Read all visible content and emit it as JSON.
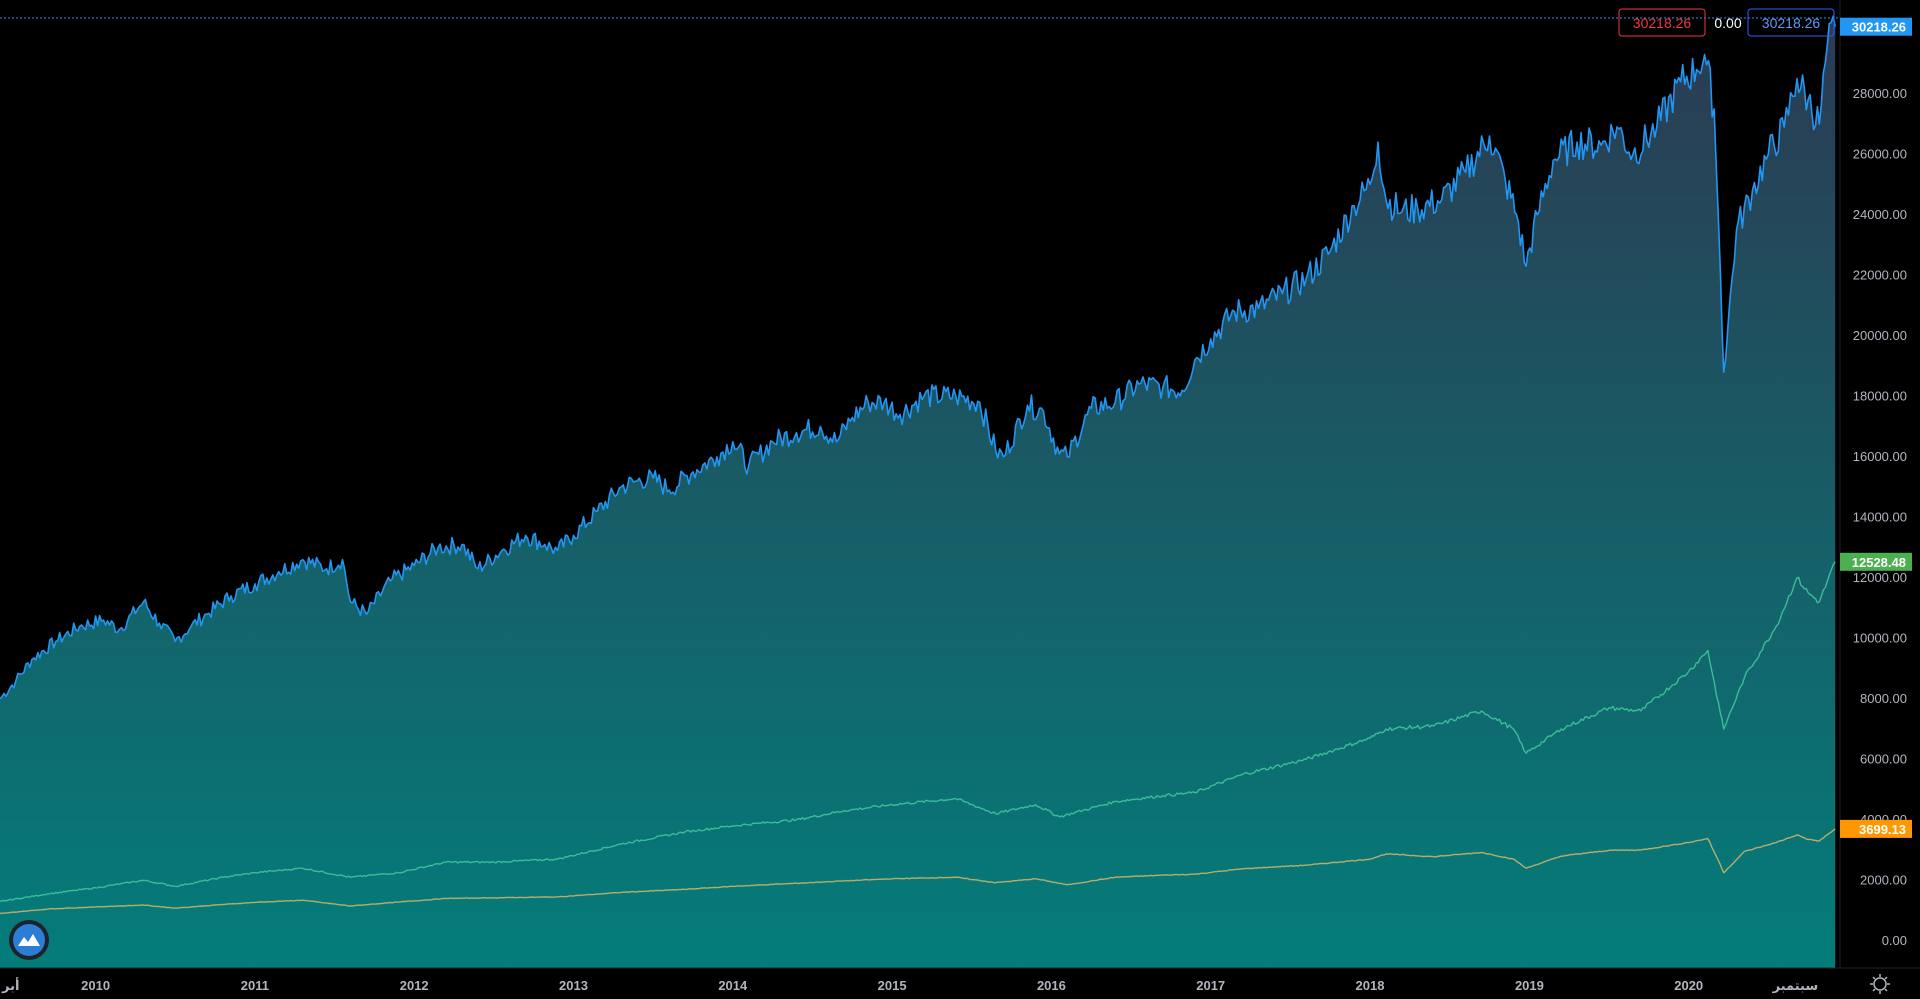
{
  "chart_data": {
    "type": "area",
    "title": "",
    "xlabel": "",
    "ylabel": "",
    "ylim": [
      -900,
      31100
    ],
    "xlim": [
      2009.4,
      2020.95
    ],
    "grid": false,
    "x_ticks": [
      {
        "x": 2009.4,
        "label": "أبر"
      },
      {
        "x": 2010.0,
        "label": "2010"
      },
      {
        "x": 2011.0,
        "label": "2011"
      },
      {
        "x": 2012.0,
        "label": "2012"
      },
      {
        "x": 2013.0,
        "label": "2013"
      },
      {
        "x": 2014.0,
        "label": "2014"
      },
      {
        "x": 2015.0,
        "label": "2015"
      },
      {
        "x": 2016.0,
        "label": "2016"
      },
      {
        "x": 2017.0,
        "label": "2017"
      },
      {
        "x": 2018.0,
        "label": "2018"
      },
      {
        "x": 2019.0,
        "label": "2019"
      },
      {
        "x": 2020.0,
        "label": "2020"
      },
      {
        "x": 2020.67,
        "label": "سبتمبر"
      }
    ],
    "y_ticks": [
      "0.00",
      "2000.00",
      "4000.00",
      "6000.00",
      "8000.00",
      "10000.00",
      "12000.00",
      "14000.00",
      "16000.00",
      "18000.00",
      "20000.00",
      "22000.00",
      "24000.00",
      "26000.00",
      "28000.00"
    ],
    "y_tick_values": [
      0,
      2000,
      4000,
      6000,
      8000,
      10000,
      12000,
      14000,
      16000,
      18000,
      20000,
      22000,
      24000,
      26000,
      28000
    ],
    "series": [
      {
        "color": "#2196f3",
        "last_value": "30218.26",
        "tag_color": "#2196f3",
        "fill": true,
        "points": [
          [
            2009.4,
            8000
          ],
          [
            2009.5,
            8600
          ],
          [
            2009.6,
            9300
          ],
          [
            2009.75,
            9900
          ],
          [
            2009.9,
            10400
          ],
          [
            2010.05,
            10600
          ],
          [
            2010.15,
            10300
          ],
          [
            2010.3,
            11200
          ],
          [
            2010.4,
            10500
          ],
          [
            2010.5,
            9900
          ],
          [
            2010.6,
            10400
          ],
          [
            2010.7,
            10800
          ],
          [
            2010.85,
            11400
          ],
          [
            2011.0,
            11800
          ],
          [
            2011.15,
            12200
          ],
          [
            2011.3,
            12600
          ],
          [
            2011.45,
            12300
          ],
          [
            2011.55,
            12600
          ],
          [
            2011.6,
            11200
          ],
          [
            2011.7,
            10800
          ],
          [
            2011.85,
            11900
          ],
          [
            2012.0,
            12400
          ],
          [
            2012.15,
            13000
          ],
          [
            2012.3,
            13100
          ],
          [
            2012.4,
            12300
          ],
          [
            2012.55,
            12900
          ],
          [
            2012.7,
            13400
          ],
          [
            2012.82,
            13100
          ],
          [
            2012.9,
            12900
          ],
          [
            2013.0,
            13400
          ],
          [
            2013.15,
            14200
          ],
          [
            2013.3,
            15000
          ],
          [
            2013.4,
            15200
          ],
          [
            2013.5,
            15300
          ],
          [
            2013.6,
            14900
          ],
          [
            2013.75,
            15500
          ],
          [
            2013.9,
            16000
          ],
          [
            2014.0,
            16500
          ],
          [
            2014.1,
            15700
          ],
          [
            2014.25,
            16500
          ],
          [
            2014.4,
            16800
          ],
          [
            2014.55,
            17000
          ],
          [
            2014.65,
            16500
          ],
          [
            2014.75,
            17300
          ],
          [
            2014.85,
            17800
          ],
          [
            2014.95,
            17800
          ],
          [
            2015.05,
            17400
          ],
          [
            2015.2,
            18000
          ],
          [
            2015.4,
            18000
          ],
          [
            2015.55,
            17800
          ],
          [
            2015.65,
            16200
          ],
          [
            2015.7,
            16000
          ],
          [
            2015.85,
            17700
          ],
          [
            2015.95,
            17500
          ],
          [
            2016.05,
            16100
          ],
          [
            2016.1,
            16000
          ],
          [
            2016.25,
            17600
          ],
          [
            2016.4,
            17800
          ],
          [
            2016.55,
            18400
          ],
          [
            2016.7,
            18300
          ],
          [
            2016.82,
            18200
          ],
          [
            2016.9,
            19200
          ],
          [
            2017.0,
            19900
          ],
          [
            2017.15,
            20800
          ],
          [
            2017.3,
            20900
          ],
          [
            2017.45,
            21400
          ],
          [
            2017.6,
            21900
          ],
          [
            2017.75,
            22800
          ],
          [
            2017.9,
            24300
          ],
          [
            2018.0,
            25000
          ],
          [
            2018.05,
            26400
          ],
          [
            2018.1,
            24500
          ],
          [
            2018.2,
            24100
          ],
          [
            2018.3,
            24200
          ],
          [
            2018.45,
            24500
          ],
          [
            2018.6,
            25400
          ],
          [
            2018.75,
            26600
          ],
          [
            2018.85,
            25100
          ],
          [
            2018.92,
            24000
          ],
          [
            2018.98,
            22300
          ],
          [
            2019.05,
            24000
          ],
          [
            2019.15,
            25800
          ],
          [
            2019.3,
            26400
          ],
          [
            2019.45,
            26300
          ],
          [
            2019.55,
            26900
          ],
          [
            2019.65,
            26000
          ],
          [
            2019.8,
            26900
          ],
          [
            2019.95,
            28400
          ],
          [
            2020.05,
            28800
          ],
          [
            2020.1,
            29300
          ],
          [
            2020.16,
            27500
          ],
          [
            2020.2,
            22000
          ],
          [
            2020.22,
            18800
          ],
          [
            2020.3,
            23500
          ],
          [
            2020.4,
            24800
          ],
          [
            2020.5,
            26000
          ],
          [
            2020.6,
            26900
          ],
          [
            2020.68,
            28500
          ],
          [
            2020.75,
            27800
          ],
          [
            2020.82,
            27000
          ],
          [
            2020.87,
            29600
          ],
          [
            2020.92,
            30218.26
          ]
        ]
      },
      {
        "color": "#3cbc98",
        "last_value": "12528.48",
        "tag_color": "#4caf50",
        "fill": false,
        "points": [
          [
            2009.4,
            1300
          ],
          [
            2009.7,
            1550
          ],
          [
            2010.0,
            1750
          ],
          [
            2010.3,
            2000
          ],
          [
            2010.5,
            1800
          ],
          [
            2010.8,
            2100
          ],
          [
            2011.0,
            2250
          ],
          [
            2011.3,
            2400
          ],
          [
            2011.6,
            2100
          ],
          [
            2011.9,
            2250
          ],
          [
            2012.2,
            2600
          ],
          [
            2012.5,
            2600
          ],
          [
            2012.9,
            2700
          ],
          [
            2013.3,
            3200
          ],
          [
            2013.7,
            3600
          ],
          [
            2014.0,
            3800
          ],
          [
            2014.4,
            4000
          ],
          [
            2014.7,
            4300
          ],
          [
            2015.0,
            4500
          ],
          [
            2015.4,
            4700
          ],
          [
            2015.65,
            4200
          ],
          [
            2015.9,
            4500
          ],
          [
            2016.05,
            4100
          ],
          [
            2016.4,
            4600
          ],
          [
            2016.7,
            4800
          ],
          [
            2016.9,
            4900
          ],
          [
            2017.2,
            5500
          ],
          [
            2017.6,
            6000
          ],
          [
            2018.0,
            6700
          ],
          [
            2018.1,
            7000
          ],
          [
            2018.4,
            7100
          ],
          [
            2018.7,
            7600
          ],
          [
            2018.9,
            7000
          ],
          [
            2018.98,
            6200
          ],
          [
            2019.2,
            7000
          ],
          [
            2019.5,
            7700
          ],
          [
            2019.7,
            7600
          ],
          [
            2020.0,
            8900
          ],
          [
            2020.12,
            9600
          ],
          [
            2020.2,
            7500
          ],
          [
            2020.22,
            7000
          ],
          [
            2020.35,
            8700
          ],
          [
            2020.55,
            10400
          ],
          [
            2020.68,
            12000
          ],
          [
            2020.75,
            11500
          ],
          [
            2020.82,
            11200
          ],
          [
            2020.92,
            12528.48
          ]
        ]
      },
      {
        "color": "#b5ad6c",
        "last_value": "3699.13",
        "tag_color": "#ff9800",
        "fill": false,
        "points": [
          [
            2009.4,
            900
          ],
          [
            2009.7,
            1050
          ],
          [
            2010.0,
            1120
          ],
          [
            2010.3,
            1180
          ],
          [
            2010.5,
            1080
          ],
          [
            2010.8,
            1200
          ],
          [
            2011.0,
            1270
          ],
          [
            2011.3,
            1340
          ],
          [
            2011.6,
            1150
          ],
          [
            2011.9,
            1280
          ],
          [
            2012.2,
            1400
          ],
          [
            2012.5,
            1420
          ],
          [
            2012.9,
            1450
          ],
          [
            2013.3,
            1600
          ],
          [
            2013.7,
            1700
          ],
          [
            2014.0,
            1800
          ],
          [
            2014.4,
            1900
          ],
          [
            2014.7,
            1980
          ],
          [
            2015.0,
            2050
          ],
          [
            2015.4,
            2100
          ],
          [
            2015.65,
            1920
          ],
          [
            2015.9,
            2050
          ],
          [
            2016.1,
            1850
          ],
          [
            2016.4,
            2100
          ],
          [
            2016.7,
            2170
          ],
          [
            2016.9,
            2200
          ],
          [
            2017.2,
            2380
          ],
          [
            2017.6,
            2500
          ],
          [
            2018.0,
            2700
          ],
          [
            2018.1,
            2870
          ],
          [
            2018.4,
            2780
          ],
          [
            2018.7,
            2920
          ],
          [
            2018.9,
            2700
          ],
          [
            2018.98,
            2400
          ],
          [
            2019.2,
            2800
          ],
          [
            2019.5,
            2990
          ],
          [
            2019.7,
            3000
          ],
          [
            2020.0,
            3250
          ],
          [
            2020.12,
            3380
          ],
          [
            2020.2,
            2500
          ],
          [
            2020.22,
            2250
          ],
          [
            2020.35,
            2950
          ],
          [
            2020.55,
            3250
          ],
          [
            2020.68,
            3500
          ],
          [
            2020.75,
            3350
          ],
          [
            2020.82,
            3300
          ],
          [
            2020.92,
            3699.13
          ]
        ]
      }
    ]
  },
  "header": {
    "label_left": "30218.26",
    "label_mid": "0.00",
    "label_right": "30218.26"
  },
  "colors": {
    "background": "#000000",
    "axis_text": "#b2b5be",
    "fill_top": "#2c3a52",
    "fill_bottom": "#047d7a",
    "header_left_border": "#f23645",
    "header_right_border": "#2962ff"
  },
  "icons": {
    "logo": "tradingview-logo-icon",
    "settings": "gear-icon"
  }
}
